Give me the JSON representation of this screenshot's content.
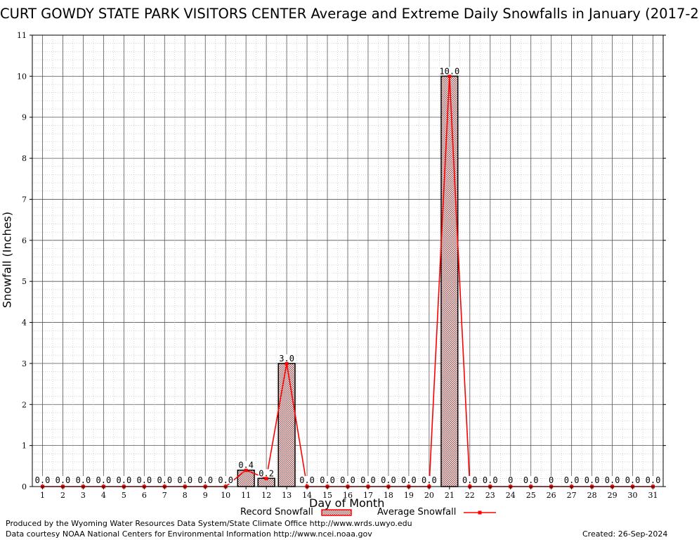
{
  "title": "CURT GOWDY STATE PARK VISITORS CENTER Average and Extreme Daily Snowfalls in January (2017-2",
  "footer": {
    "produced_by": "Produced by the Wyoming Water Resources Data System/State Climate Office http://www.wrds.uwyo.edu",
    "courtesy": "Data courtesy NOAA National Centers for Environmental Information http://www.ncei.noaa.gov",
    "created": "Created:  26-Sep-2024"
  },
  "colors": {
    "record_fill": "#c8a0a0",
    "record_stroke": "#000000",
    "average_line": "#ff0000",
    "grid": "#999999",
    "label_bg": "#ffffff"
  },
  "chart_data": {
    "type": "bar",
    "title": "CURT GOWDY STATE PARK VISITORS CENTER Average and Extreme Daily Snowfalls in January (2017-2",
    "xlabel": "Day of Month",
    "ylabel": "Snowfall (Inches)",
    "ylim": [
      0,
      11
    ],
    "yticks": [
      0,
      1,
      2,
      3,
      4,
      5,
      6,
      7,
      8,
      9,
      10,
      11
    ],
    "grid": true,
    "categories": [
      1,
      2,
      3,
      4,
      5,
      6,
      7,
      8,
      9,
      10,
      11,
      12,
      13,
      14,
      15,
      16,
      17,
      18,
      19,
      20,
      21,
      22,
      23,
      24,
      25,
      26,
      27,
      28,
      29,
      30,
      31
    ],
    "series": [
      {
        "name": "Record Snowfall",
        "kind": "bar",
        "values": [
          0,
          0,
          0,
          0,
          0,
          0,
          0,
          0,
          0,
          0,
          0.4,
          0.2,
          3.0,
          0,
          0,
          0,
          0,
          0,
          0,
          0,
          10.0,
          0,
          0,
          0,
          0,
          0,
          0,
          0,
          0,
          0,
          0
        ]
      },
      {
        "name": "Average Snowfall",
        "kind": "line",
        "values": [
          0,
          0,
          0,
          0,
          0,
          0,
          0,
          0,
          0,
          0,
          0.4,
          0.2,
          3.0,
          0,
          0,
          0,
          0,
          0,
          0,
          0,
          10.0,
          0,
          0,
          0,
          0,
          0,
          0,
          0,
          0,
          0,
          0
        ]
      }
    ],
    "data_labels": [
      "0.0",
      "0.0",
      "0.0",
      "0.0",
      "0.0",
      "0.0",
      "0.0",
      "0.0",
      "0.0",
      "0.0",
      "0.4",
      "0.2",
      "3.0",
      "0.0",
      "0.0",
      "0.0",
      "0.0",
      "0.0",
      "0.0",
      "0.0",
      "10.0",
      "0.0",
      "0.0",
      "0",
      "0.0",
      "0",
      "0.0",
      "0.0",
      "0.0",
      "0.0",
      "0.0"
    ],
    "legend": [
      "Record Snowfall",
      "Average Snowfall"
    ],
    "legend_position": "bottom"
  }
}
